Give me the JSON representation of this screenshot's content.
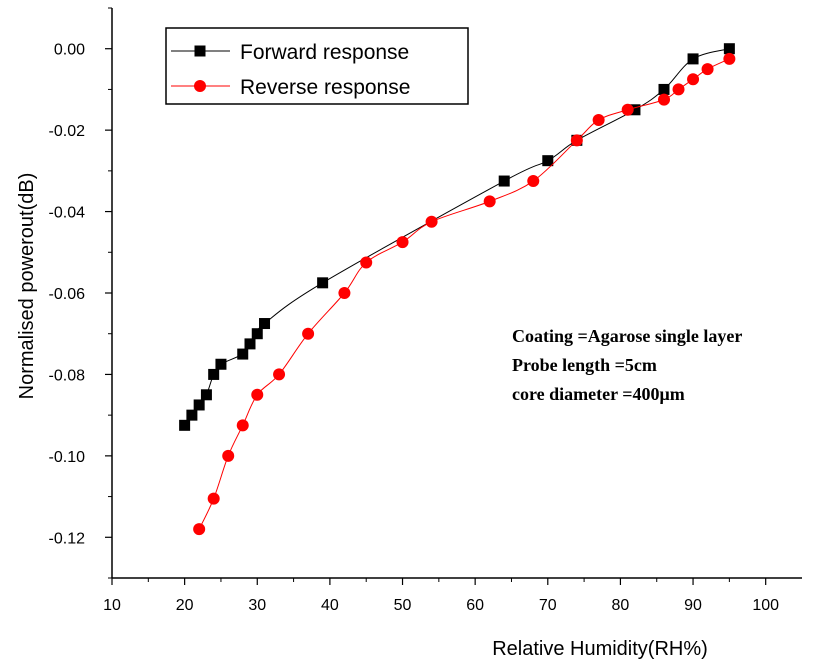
{
  "chart_data": {
    "type": "line",
    "title": "",
    "xlabel": "Relative Humidity(RH%)",
    "ylabel": "Normalised powerout(dB)",
    "xlim": [
      10,
      105
    ],
    "ylim": [
      -0.13,
      0.01
    ],
    "xticks": [
      10,
      20,
      30,
      40,
      50,
      60,
      70,
      80,
      90,
      100
    ],
    "xtick_labels": [
      "10",
      "20",
      "30",
      "40",
      "50",
      "60",
      "70",
      "80",
      "90",
      "100"
    ],
    "yticks": [
      0.0,
      -0.02,
      -0.04,
      -0.06,
      -0.08,
      -0.1,
      -0.12
    ],
    "ytick_labels": [
      "0.00",
      "-0.02",
      "-0.04",
      "-0.06",
      "-0.08",
      "-0.10",
      "-0.12"
    ],
    "grid": false,
    "legend_position": "top-left",
    "series": [
      {
        "name": "Forward response",
        "color": "#000000",
        "marker": "square",
        "x": [
          20,
          21,
          22,
          23,
          24,
          25,
          28,
          29,
          30,
          31,
          39,
          64,
          70,
          74,
          82,
          86,
          90,
          95
        ],
        "y": [
          -0.0925,
          -0.09,
          -0.0875,
          -0.085,
          -0.08,
          -0.0775,
          -0.075,
          -0.0725,
          -0.07,
          -0.0675,
          -0.0575,
          -0.0325,
          -0.0275,
          -0.0225,
          -0.015,
          -0.01,
          -0.0025,
          0.0
        ]
      },
      {
        "name": "Reverse response",
        "color": "#ff0000",
        "marker": "circle",
        "x": [
          22,
          24,
          26,
          28,
          30,
          33,
          37,
          42,
          45,
          50,
          54,
          62,
          68,
          74,
          77,
          81,
          86,
          88,
          90,
          92,
          95
        ],
        "y": [
          -0.118,
          -0.1105,
          -0.1,
          -0.0925,
          -0.085,
          -0.08,
          -0.07,
          -0.06,
          -0.0525,
          -0.0475,
          -0.0425,
          -0.0375,
          -0.0325,
          -0.0225,
          -0.0175,
          -0.015,
          -0.0125,
          -0.01,
          -0.0075,
          -0.005,
          -0.0025
        ]
      }
    ],
    "annotations": [
      "Coating =Agarose single layer",
      "Probe length =5cm",
      "core diameter =400μm"
    ]
  }
}
